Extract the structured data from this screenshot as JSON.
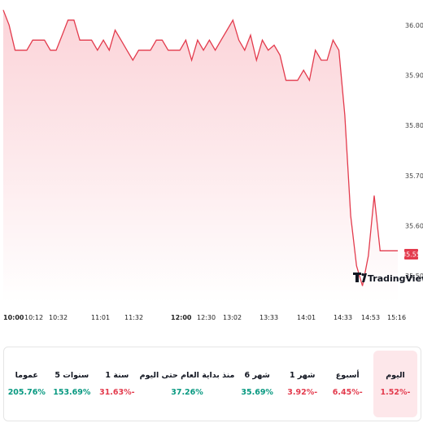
{
  "chart_data": {
    "type": "area",
    "x_ticks": [
      "10:00",
      "10:12",
      "10:32",
      "11:01",
      "11:32",
      "12:00",
      "12:30",
      "13:02",
      "13:33",
      "14:01",
      "14:33",
      "14:53",
      "15:16"
    ],
    "bold_ticks": [
      "10:00",
      "12:00"
    ],
    "y_ticks": [
      36.0,
      35.9,
      35.8,
      35.7,
      35.6,
      35.5
    ],
    "ylim": [
      35.45,
      36.05
    ],
    "current_value": "35.55",
    "values": [
      36.03,
      36.0,
      35.95,
      35.95,
      35.95,
      35.97,
      35.97,
      35.97,
      35.95,
      35.95,
      35.98,
      36.01,
      36.01,
      35.97,
      35.97,
      35.97,
      35.95,
      35.97,
      35.95,
      35.99,
      35.97,
      35.95,
      35.93,
      35.95,
      35.95,
      35.95,
      35.97,
      35.97,
      35.95,
      35.95,
      35.95,
      35.97,
      35.93,
      35.97,
      35.95,
      35.97,
      35.95,
      35.97,
      35.99,
      36.01,
      35.97,
      35.95,
      35.98,
      35.93,
      35.97,
      35.95,
      35.96,
      35.94,
      35.89,
      35.89,
      35.89,
      35.91,
      35.89,
      35.95,
      35.93,
      35.93,
      35.97,
      35.95,
      35.82,
      35.62,
      35.52,
      35.48,
      35.54,
      35.66,
      35.55,
      35.55,
      35.55,
      35.55
    ],
    "colors": {
      "line": "#e33b4d",
      "fill_top": "#fbd3d8",
      "fill_bottom": "#ffffff"
    }
  },
  "watermark": {
    "text": "TradingView",
    "icon": "tradingview-logo-icon"
  },
  "performance": [
    {
      "label": "اليوم",
      "value": "1.52%-",
      "trend": "neg",
      "active": true
    },
    {
      "label": "أسبوع",
      "value": "6.45%-",
      "trend": "neg",
      "active": false
    },
    {
      "label": "1 شهر",
      "value": "3.92%-",
      "trend": "neg",
      "active": false
    },
    {
      "label": "6 شهر",
      "value": "35.69%",
      "trend": "pos",
      "active": false
    },
    {
      "label": "منذ بداية العام حتى اليوم",
      "value": "37.26%",
      "trend": "pos",
      "active": false
    },
    {
      "label": "1 سنة",
      "value": "31.63%-",
      "trend": "neg",
      "active": false
    },
    {
      "label": "5 سنوات",
      "value": "153.69%",
      "trend": "pos",
      "active": false
    },
    {
      "label": "عموما",
      "value": "205.76%",
      "trend": "pos",
      "active": false
    }
  ]
}
